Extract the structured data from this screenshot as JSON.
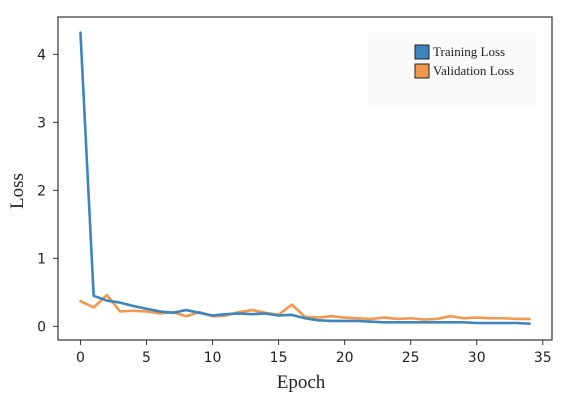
{
  "chart_data": {
    "type": "line",
    "title": "",
    "xlabel": "Epoch",
    "ylabel": "Loss",
    "xlim": [
      -1.7,
      35.7
    ],
    "ylim": [
      -0.2,
      4.55
    ],
    "xticks": [
      0,
      5,
      10,
      15,
      20,
      25,
      30,
      35
    ],
    "yticks": [
      0,
      1,
      2,
      3,
      4
    ],
    "grid": false,
    "legend_position": "top-right",
    "series": [
      {
        "name": "Training Loss",
        "color": "#3d86bd",
        "x": [
          0,
          1,
          2,
          3,
          4,
          5,
          6,
          7,
          8,
          9,
          10,
          11,
          12,
          13,
          14,
          15,
          16,
          17,
          18,
          19,
          20,
          21,
          22,
          23,
          24,
          25,
          26,
          27,
          28,
          29,
          30,
          31,
          32,
          33,
          34
        ],
        "y": [
          4.32,
          0.45,
          0.38,
          0.35,
          0.3,
          0.26,
          0.22,
          0.2,
          0.24,
          0.2,
          0.16,
          0.18,
          0.19,
          0.18,
          0.19,
          0.16,
          0.17,
          0.12,
          0.09,
          0.08,
          0.08,
          0.08,
          0.07,
          0.06,
          0.06,
          0.06,
          0.06,
          0.06,
          0.06,
          0.06,
          0.05,
          0.05,
          0.05,
          0.05,
          0.04
        ]
      },
      {
        "name": "Validation Loss",
        "color": "#f0994f",
        "x": [
          0,
          1,
          2,
          3,
          4,
          5,
          6,
          7,
          8,
          9,
          10,
          11,
          12,
          13,
          14,
          15,
          16,
          17,
          18,
          19,
          20,
          21,
          22,
          23,
          24,
          25,
          26,
          27,
          28,
          29,
          30,
          31,
          32,
          33,
          34
        ],
        "y": [
          0.37,
          0.28,
          0.46,
          0.22,
          0.23,
          0.22,
          0.19,
          0.21,
          0.15,
          0.21,
          0.15,
          0.16,
          0.21,
          0.24,
          0.2,
          0.17,
          0.32,
          0.14,
          0.13,
          0.15,
          0.13,
          0.12,
          0.11,
          0.13,
          0.11,
          0.12,
          0.1,
          0.11,
          0.15,
          0.12,
          0.13,
          0.12,
          0.12,
          0.11,
          0.11
        ]
      }
    ]
  }
}
